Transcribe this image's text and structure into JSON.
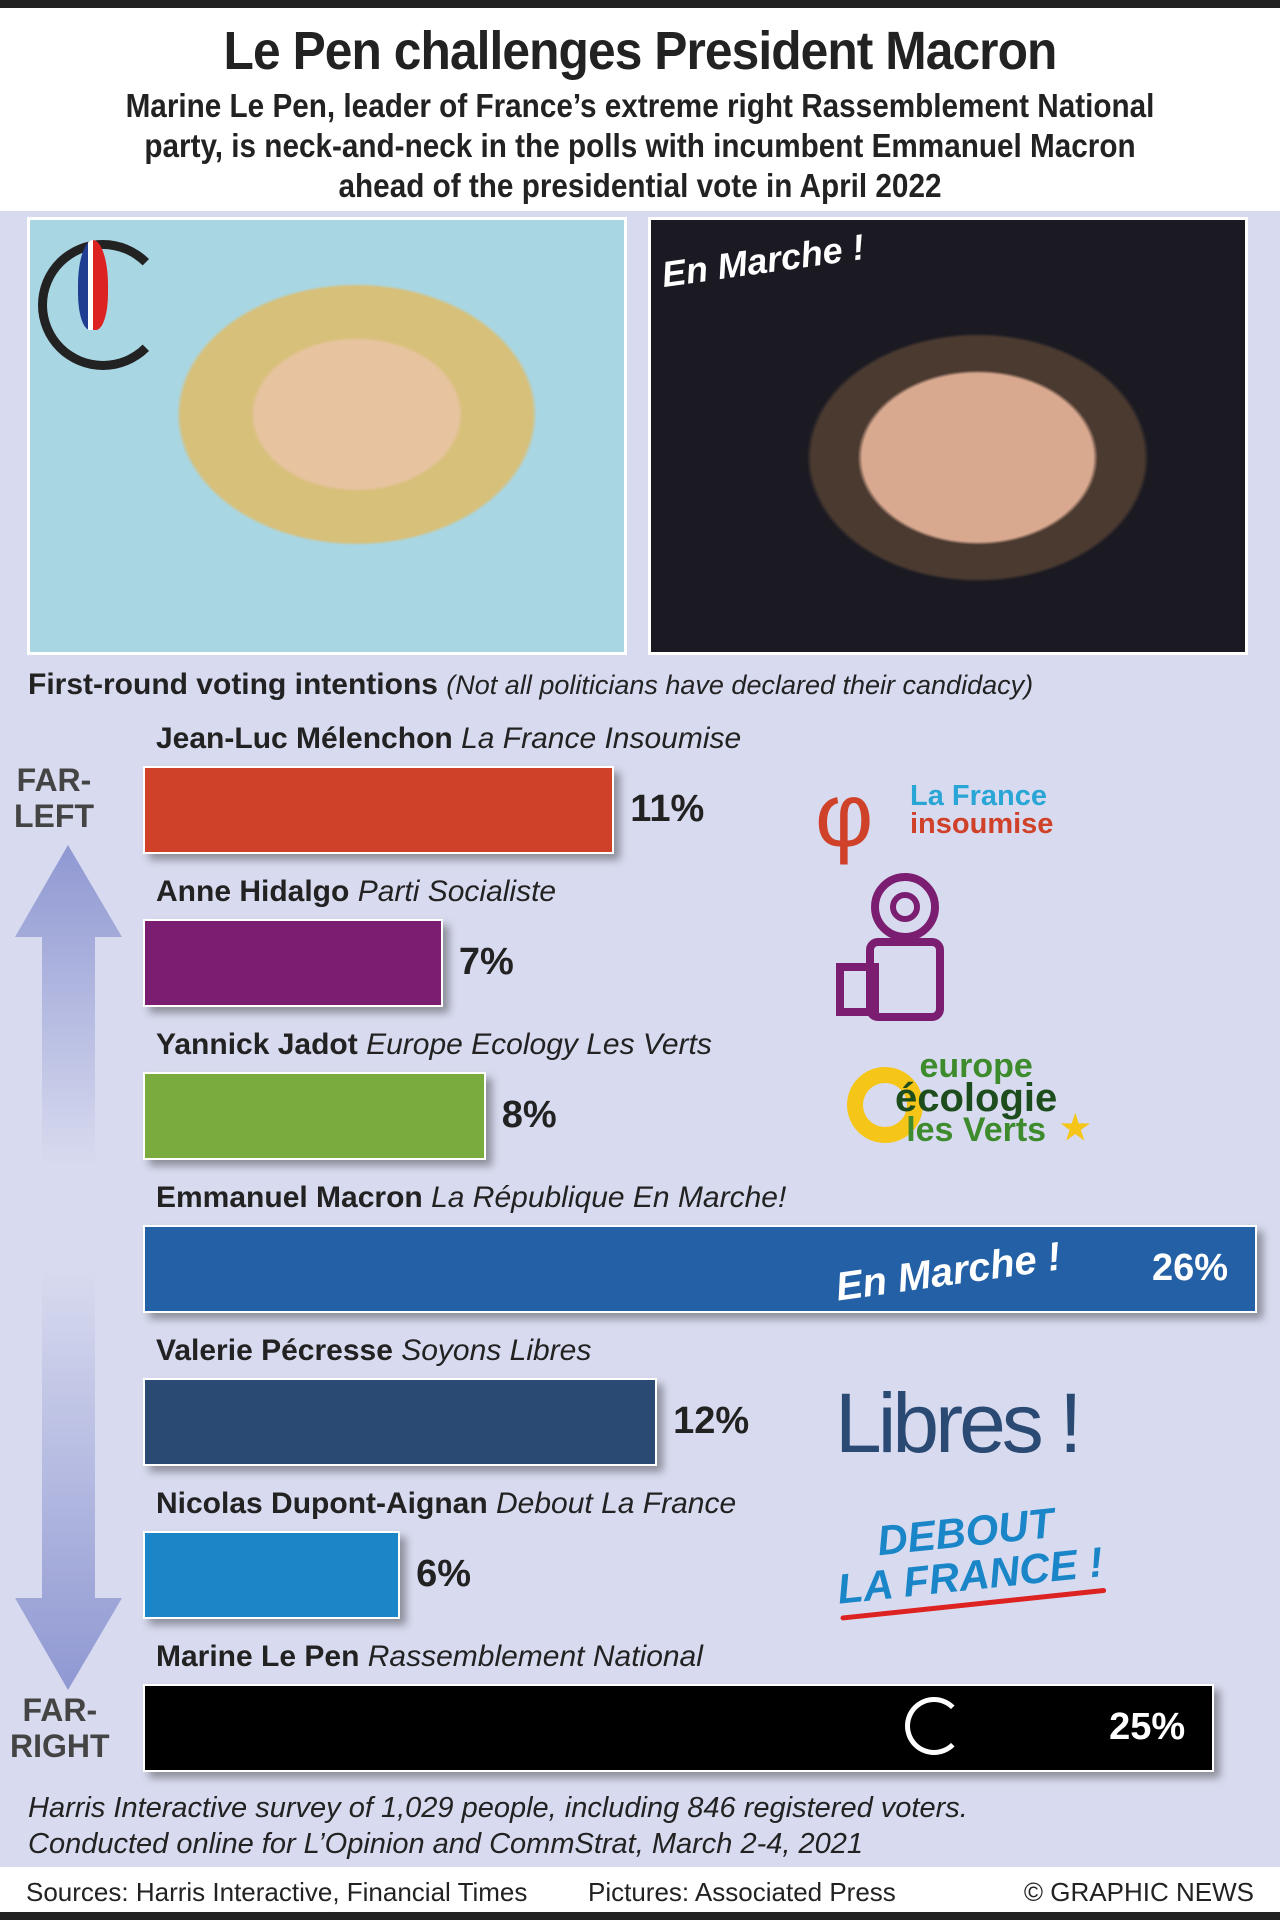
{
  "header": {
    "title": "Le Pen challenges President Macron",
    "subtitle": [
      "Marine Le Pen, leader of France’s extreme right Rassemblement National",
      "party, is neck-and-neck in the polls with incumbent Emmanuel Macron",
      "ahead of the presidential vote in April 2022"
    ]
  },
  "photos": {
    "macron_overlay": "En Marche !"
  },
  "axis": {
    "top": "FAR-\nLEFT",
    "bottom": "FAR-\nRIGHT"
  },
  "chart_data": {
    "type": "bar",
    "orientation": "horizontal",
    "title": "First-round voting intentions",
    "subtitle": "(Not all politicians have declared their candidacy)",
    "unit": "%",
    "xlim": [
      0,
      26
    ],
    "categories": [
      "Jean-Luc Mélenchon",
      "Anne Hidalgo",
      "Yannick Jadot",
      "Emmanuel Macron",
      "Valerie Pécresse",
      "Nicolas Dupont-Aignan",
      "Marine Le Pen"
    ],
    "parties": [
      "La France Insoumise",
      "Parti Socialiste",
      "Europe Ecology Les Verts",
      "La République En Marche!",
      "Soyons Libres",
      "Debout La France",
      "Rassemblement National"
    ],
    "values": [
      11,
      7,
      8,
      26,
      12,
      6,
      25
    ],
    "labels": [
      "11%",
      "7%",
      "8%",
      "26%",
      "12%",
      "6%",
      "25%"
    ],
    "colors": [
      "#d0412a",
      "#7b1e72",
      "#7aab3f",
      "#2360a5",
      "#2a4a74",
      "#1a86c8",
      "#000000"
    ]
  },
  "logos": {
    "lfi": [
      "La France",
      "insoumise"
    ],
    "eelv": [
      "europe",
      "écologie",
      "les Verts"
    ],
    "em": "En Marche !",
    "libres": "Libres !",
    "dlf": [
      "DEBOUT",
      "LA FRANCE !"
    ]
  },
  "footnote": [
    "Harris Interactive survey of 1,029 people, including 846 registered voters.",
    "Conducted online for L’Opinion and CommStrat, March 2-4, 2021"
  ],
  "footer": {
    "sources": "Sources: Harris Interactive, Financial Times",
    "pictures": "Pictures: Associated Press",
    "credit": "© GRAPHIC NEWS"
  }
}
